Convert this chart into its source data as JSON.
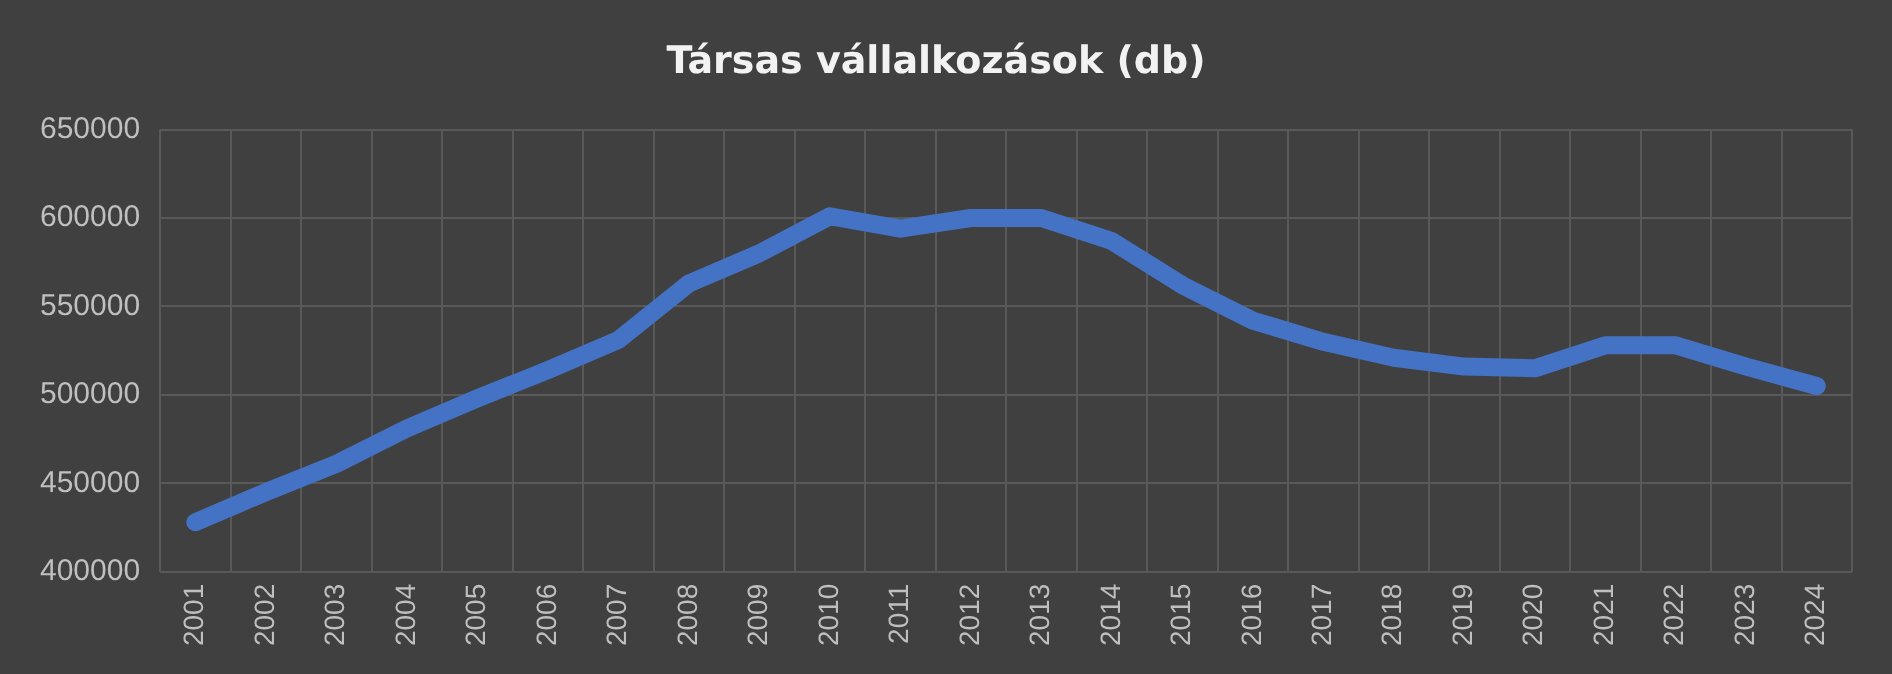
{
  "chart_data": {
    "type": "line",
    "title": "Társas vállalkozások (db)",
    "categories": [
      "2001",
      "2002",
      "2003",
      "2004",
      "2005",
      "2006",
      "2007",
      "2008",
      "2009",
      "2010",
      "2011",
      "2012",
      "2013",
      "2014",
      "2015",
      "2016",
      "2017",
      "2018",
      "2019",
      "2020",
      "2021",
      "2022",
      "2023",
      "2024"
    ],
    "series": [
      {
        "color": "#4472c4",
        "values": [
          428000,
          445000,
          461000,
          481000,
          498000,
          514000,
          531000,
          563000,
          580000,
          601000,
          594000,
          600000,
          600000,
          587000,
          562000,
          542000,
          530000,
          521000,
          516000,
          515000,
          528000,
          528000,
          516000,
          505000
        ]
      }
    ],
    "ylim": [
      400000,
      650000
    ],
    "yticks": [
      400000,
      450000,
      500000,
      550000,
      600000,
      650000
    ],
    "grid": true,
    "legend": false,
    "marker": "none",
    "line_style": "solid"
  }
}
